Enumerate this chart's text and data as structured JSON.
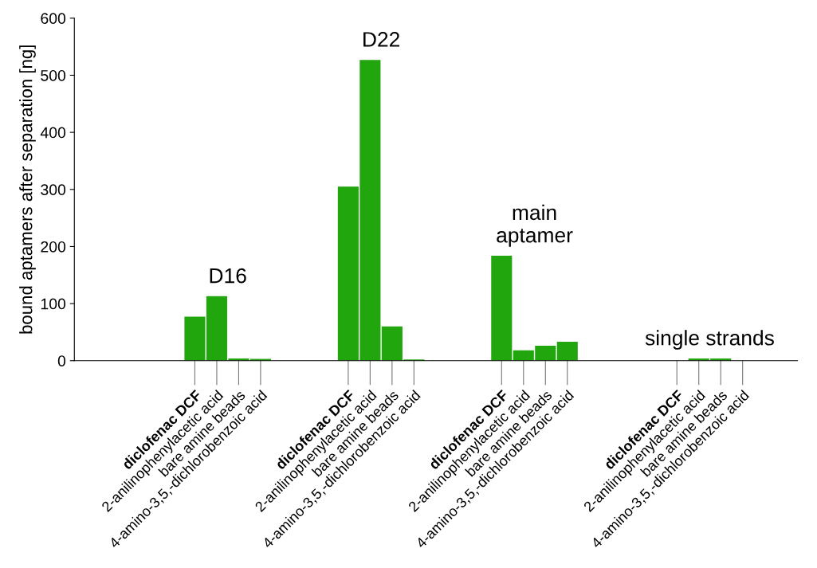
{
  "chart_data": {
    "type": "bar",
    "ylabel": "bound aptamers after separation [ng]",
    "categories": [
      null,
      null,
      null,
      null,
      null,
      "diclofenac DCF",
      "2-anilinophenylacetic acid",
      "bare amine beads",
      "4-amino-3,5,-dichlorobenzoic acid",
      null,
      null,
      null,
      "diclofenac DCF",
      "2-anilinophenylacetic acid",
      "bare amine beads",
      "4-amino-3,5,-dichlorobenzoic acid",
      null,
      null,
      null,
      "diclofenac DCF",
      "2-anilinophenylacetic acid",
      "bare amine beads",
      "4-amino-3,5,-dichlorobenzoic acid",
      null,
      null,
      null,
      null,
      "diclofenac DCF",
      "2-anilinophenylacetic acid",
      "bare amine beads",
      "4-amino-3,5,-dichlorobenzoic acid",
      null,
      null
    ],
    "values": [
      null,
      null,
      null,
      null,
      null,
      77,
      113,
      4,
      3,
      null,
      null,
      null,
      305,
      527,
      60,
      2,
      null,
      null,
      null,
      184,
      18,
      26,
      33,
      null,
      null,
      null,
      null,
      0,
      4,
      4,
      0,
      null,
      null
    ],
    "color": "#22a60e",
    "ylim": [
      0,
      600
    ],
    "yticks": [
      0,
      100,
      200,
      300,
      400,
      500,
      600
    ],
    "grid": false,
    "annotations": [
      "D16",
      "D22",
      "main\naptamer",
      "single strands"
    ]
  }
}
